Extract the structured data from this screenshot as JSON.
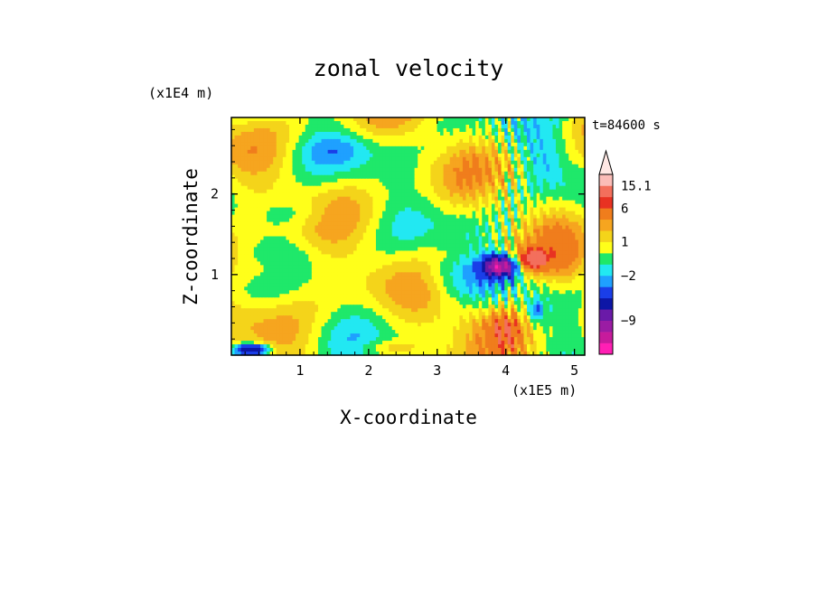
{
  "chart_data": {
    "type": "heatmap",
    "title": "zonal velocity",
    "xlabel": "X-coordinate",
    "ylabel": "Z-coordinate",
    "x_scale_note": "(x1E5 m)",
    "y_scale_note": "(x1E4 m)",
    "time_label": "t=84600 s",
    "xlim": [
      0,
      5.15
    ],
    "ylim": [
      0,
      2.95
    ],
    "x_ticks": [
      "1",
      "2",
      "3",
      "4",
      "5"
    ],
    "x_tick_values": [
      1,
      2,
      3,
      4,
      5
    ],
    "y_ticks": [
      "1",
      "2"
    ],
    "y_tick_values": [
      1,
      2
    ],
    "colorbar": {
      "levels": [
        {
          "color": "#ff1fb4"
        },
        {
          "color": "#c71b9c"
        },
        {
          "color": "#9b1ca4"
        },
        {
          "color": "#6a1aa8"
        },
        {
          "color": "#0d16a6"
        },
        {
          "color": "#1a3ee8"
        },
        {
          "color": "#1fa0ff"
        },
        {
          "color": "#22e8f2"
        },
        {
          "color": "#1fe86a"
        },
        {
          "color": "#ffff1a"
        },
        {
          "color": "#f4d41a"
        },
        {
          "color": "#f6a51f"
        },
        {
          "color": "#f07d1c"
        },
        {
          "color": "#e83222"
        },
        {
          "color": "#f36f5c"
        },
        {
          "color": "#fbbdb8"
        }
      ],
      "tick_labels": [
        "15.1",
        "6",
        "1",
        "−2",
        "−9"
      ]
    },
    "regions": [
      {
        "x": 3.92,
        "z": 1.1,
        "value": -12,
        "sx": 0.25,
        "sz": 0.13
      },
      {
        "x": 4.38,
        "z": 1.18,
        "value": 6,
        "sx": 0.22,
        "sz": 0.14
      },
      {
        "x": 3.3,
        "z": 0.98,
        "value": -2.5,
        "sx": 0.55,
        "sz": 0.25
      },
      {
        "x": 0.5,
        "z": 1.05,
        "value": 2,
        "sx": 0.45,
        "sz": 0.22
      },
      {
        "x": 4.85,
        "z": 1.15,
        "value": 2,
        "sx": 0.3,
        "sz": 0.35
      },
      {
        "x": 1.5,
        "z": 2.55,
        "value": -1.5,
        "sx": 0.6,
        "sz": 0.2
      },
      {
        "x": 0.9,
        "z": 1.75,
        "value": -1.5,
        "sx": 0.6,
        "sz": 0.18
      },
      {
        "x": 0.3,
        "z": 0.07,
        "value": -8,
        "sx": 0.25,
        "sz": 0.07
      },
      {
        "x": 4.0,
        "z": 0.35,
        "value": 4,
        "sx": 0.25,
        "sz": 0.25
      },
      {
        "x": 3.6,
        "z": 0.45,
        "value": 1.5,
        "sx": 0.4,
        "sz": 0.25
      },
      {
        "x": 4.45,
        "z": 0.55,
        "value": -3,
        "sx": 0.08,
        "sz": 0.12
      },
      {
        "x": 4.6,
        "z": 2.4,
        "value": -1.5,
        "sx": 0.35,
        "sz": 0.4
      },
      {
        "x": 2.3,
        "z": 0.1,
        "value": 1.5,
        "sx": 0.4,
        "sz": 0.08
      }
    ]
  }
}
